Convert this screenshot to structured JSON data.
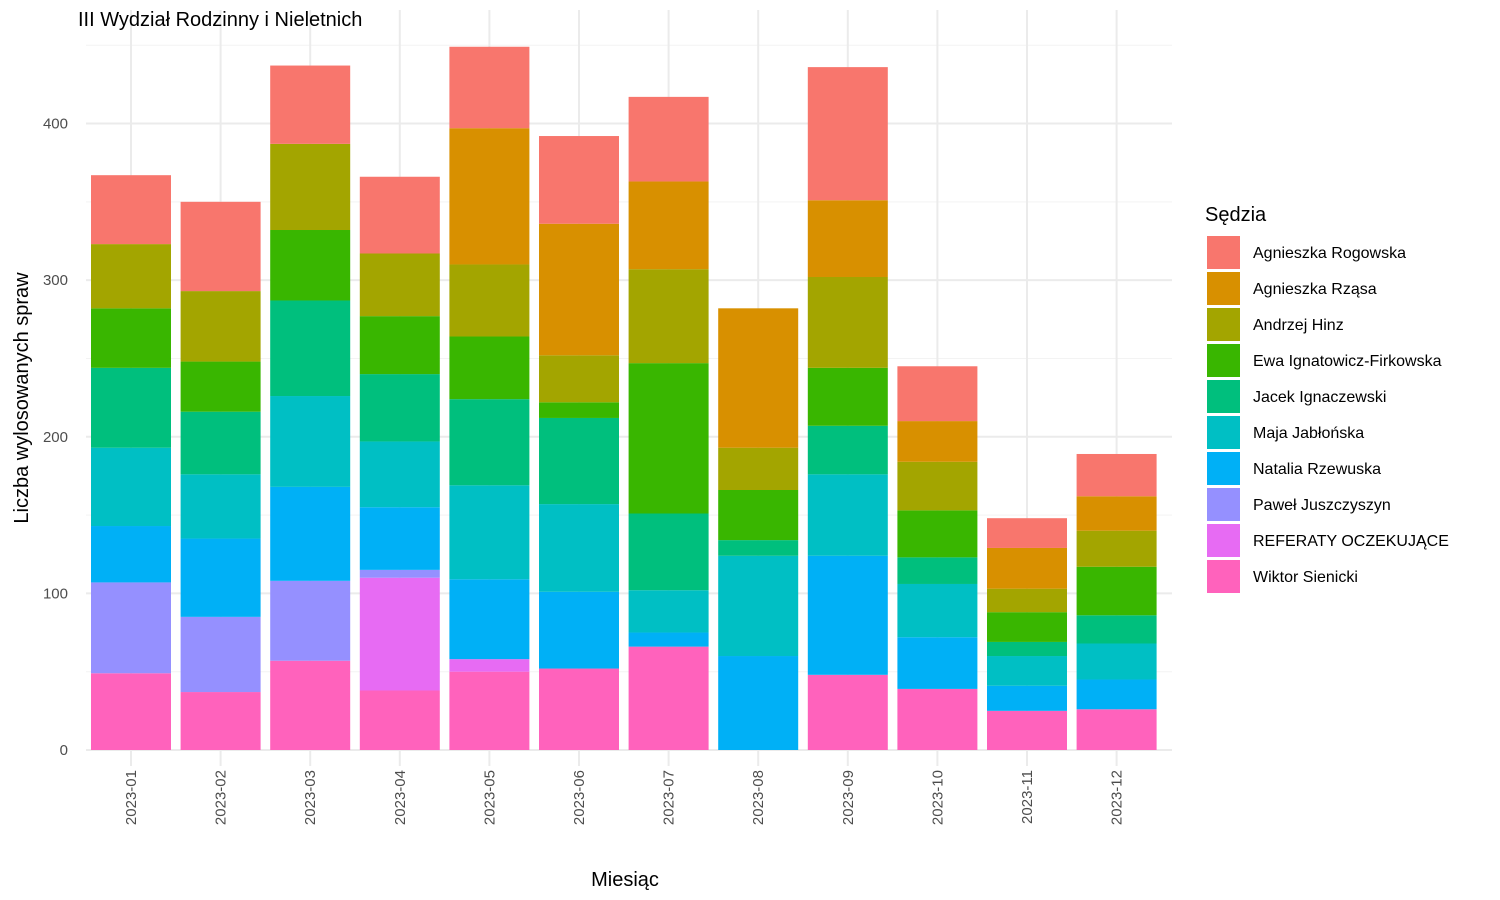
{
  "chart_data": {
    "type": "bar",
    "stacked": true,
    "title": "III Wydział Rodzinny i Nieletnich",
    "xlabel": "Miesiąc",
    "ylabel": "Liczba wylosowanych spraw",
    "ylim": [
      0,
      450
    ],
    "yticks": [
      0,
      100,
      200,
      300,
      400
    ],
    "grid": true,
    "legend_title": "Sędzia",
    "legend_position": "right",
    "categories": [
      "2023-01",
      "2023-02",
      "2023-03",
      "2023-04",
      "2023-05",
      "2023-06",
      "2023-07",
      "2023-08",
      "2023-09",
      "2023-10",
      "2023-11",
      "2023-12"
    ],
    "series": [
      {
        "name": "Agnieszka Rogowska",
        "color": "#F8766D",
        "values": [
          44,
          57,
          50,
          49,
          52,
          56,
          54,
          0,
          85,
          35,
          19,
          27
        ]
      },
      {
        "name": "Agnieszka Rząsa",
        "color": "#D89000",
        "values": [
          0,
          0,
          0,
          0,
          87,
          84,
          56,
          89,
          49,
          26,
          26,
          22
        ]
      },
      {
        "name": "Andrzej Hinz",
        "color": "#A3A500",
        "values": [
          41,
          45,
          55,
          40,
          46,
          30,
          60,
          27,
          58,
          31,
          15,
          23
        ]
      },
      {
        "name": "Ewa Ignatowicz-Firkowska",
        "color": "#39B600",
        "values": [
          38,
          32,
          45,
          37,
          40,
          10,
          96,
          32,
          37,
          30,
          19,
          31
        ]
      },
      {
        "name": "Jacek Ignaczewski",
        "color": "#00BF7D",
        "values": [
          51,
          40,
          61,
          43,
          55,
          55,
          49,
          10,
          31,
          17,
          9,
          18
        ]
      },
      {
        "name": "Maja Jabłońska",
        "color": "#00BFC4",
        "values": [
          50,
          41,
          58,
          42,
          60,
          56,
          27,
          64,
          52,
          34,
          19,
          23
        ]
      },
      {
        "name": "Natalia Rzewuska",
        "color": "#00B0F6",
        "values": [
          36,
          50,
          60,
          40,
          51,
          49,
          9,
          60,
          76,
          33,
          16,
          19
        ]
      },
      {
        "name": "Paweł Juszczyszyn",
        "color": "#9590FF",
        "values": [
          58,
          48,
          51,
          5,
          0,
          0,
          0,
          0,
          0,
          0,
          0,
          0
        ]
      },
      {
        "name": "REFERATY OCZEKUJĄCE",
        "color": "#E76BF3",
        "values": [
          0,
          0,
          0,
          72,
          8,
          0,
          0,
          0,
          0,
          0,
          0,
          0
        ]
      },
      {
        "name": "Wiktor Sienicki",
        "color": "#FF62BC",
        "values": [
          49,
          37,
          57,
          38,
          50,
          52,
          66,
          0,
          48,
          39,
          25,
          26
        ]
      }
    ]
  }
}
